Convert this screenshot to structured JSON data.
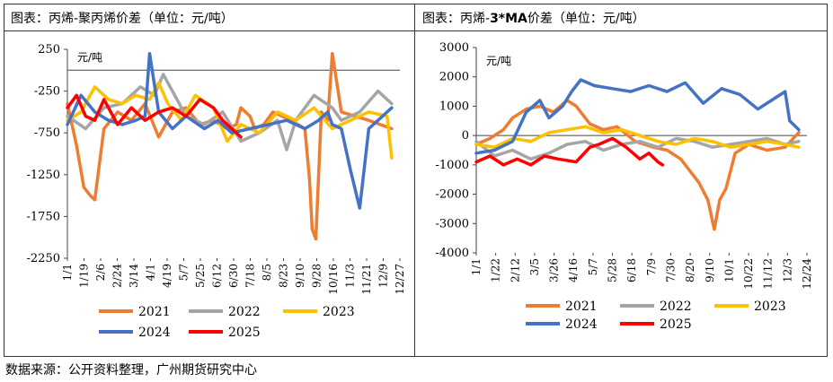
{
  "panels": [
    {
      "title": "图表：丙烯-聚丙烯价差（单位：元/吨）"
    },
    {
      "title_parts": [
        "图表：丙烯-",
        "3*MA",
        "价差（单位：元/吨）"
      ]
    }
  ],
  "source": "数据来源：公开资料整理，广州期货研究中心",
  "chart_data": [
    {
      "type": "line",
      "title": "图表：丙烯-聚丙烯价差（单位：元/吨）",
      "unit_label": "元/吨",
      "ylim": [
        -2250,
        250
      ],
      "y_ticks": [
        "250",
        "-250",
        "-750",
        "-1250",
        "-1750",
        "-2250"
      ],
      "x_ticks": [
        "1/1",
        "1/19",
        "2/6",
        "2/24",
        "3/14",
        "4/1",
        "4/19",
        "5/7",
        "5/25",
        "6/12",
        "6/30",
        "7/18",
        "8/5",
        "8/23",
        "9/10",
        "9/28",
        "10/16",
        "11/3",
        "11/21",
        "12/9",
        "12/27"
      ],
      "legend": [
        "2021",
        "2022",
        "2023",
        "2024",
        "2025"
      ],
      "series": [
        {
          "name": "2021",
          "color": "#ED7D31",
          "day": [
            0,
            10,
            18,
            25,
            30,
            40,
            55,
            70,
            85,
            100,
            115,
            130,
            145,
            160,
            175,
            185,
            190,
            200,
            205,
            215,
            225,
            245,
            260,
            265,
            268,
            272,
            278,
            285,
            290,
            300,
            330,
            355
          ],
          "values": [
            -400,
            -900,
            -1400,
            -1500,
            -1550,
            -700,
            -500,
            -600,
            -400,
            -800,
            -500,
            -450,
            -650,
            -600,
            -700,
            -650,
            -450,
            -550,
            -700,
            -650,
            -500,
            -600,
            -700,
            -1300,
            -1900,
            -2020,
            -500,
            -600,
            200,
            -500,
            -600,
            -700
          ]
        },
        {
          "name": "2022",
          "color": "#A5A5A5",
          "day": [
            0,
            20,
            40,
            60,
            80,
            95,
            105,
            115,
            130,
            150,
            170,
            190,
            210,
            230,
            240,
            250,
            270,
            290,
            300,
            320,
            340,
            355
          ],
          "values": [
            -550,
            -700,
            -450,
            -400,
            -200,
            -300,
            -50,
            -250,
            -550,
            -650,
            -500,
            -850,
            -750,
            -600,
            -950,
            -600,
            -300,
            -450,
            -600,
            -500,
            -250,
            -400
          ]
        },
        {
          "name": "2023",
          "color": "#FFC000",
          "day": [
            0,
            15,
            30,
            45,
            60,
            75,
            90,
            100,
            110,
            125,
            140,
            160,
            175,
            190,
            210,
            230,
            250,
            270,
            290,
            310,
            330,
            350,
            355
          ],
          "values": [
            -600,
            -500,
            -200,
            -350,
            -400,
            -300,
            -350,
            -150,
            -400,
            -600,
            -300,
            -450,
            -850,
            -650,
            -750,
            -500,
            -600,
            -450,
            -700,
            -600,
            -500,
            -550,
            -1050
          ]
        },
        {
          "name": "2024",
          "color": "#4472C4",
          "day": [
            0,
            15,
            30,
            45,
            60,
            75,
            85,
            90,
            100,
            115,
            130,
            150,
            165,
            180,
            200,
            220,
            240,
            260,
            275,
            285,
            290,
            300,
            310,
            320,
            330,
            345,
            355
          ],
          "values": [
            -650,
            -300,
            -500,
            -600,
            -650,
            -600,
            -550,
            200,
            -500,
            -700,
            -550,
            -700,
            -600,
            -750,
            -700,
            -650,
            -600,
            -700,
            -600,
            -500,
            -650,
            -700,
            -1200,
            -1650,
            -700,
            -550,
            -450
          ]
        },
        {
          "name": "2025",
          "color": "#FF0000",
          "day": [
            0,
            10,
            20,
            30,
            40,
            55,
            70,
            85,
            100,
            115,
            130,
            145,
            160,
            170,
            180,
            190
          ],
          "values": [
            -450,
            -300,
            -550,
            -600,
            -350,
            -650,
            -450,
            -600,
            -500,
            -450,
            -550,
            -350,
            -450,
            -600,
            -700,
            -800
          ]
        }
      ]
    },
    {
      "type": "line",
      "title": "图表：丙烯-3*MA价差（单位：元/吨）",
      "unit_label": "元/吨",
      "ylim": [
        -4000,
        3000
      ],
      "y_ticks": [
        "3000",
        "2000",
        "1000",
        "0",
        "-1000",
        "-2000",
        "-3000",
        "-4000"
      ],
      "x_ticks": [
        "1/1",
        "1/22",
        "2/12",
        "3/5",
        "3/26",
        "4/16",
        "5/7",
        "5/28",
        "6/18",
        "7/9",
        "7/30",
        "8/20",
        "9/10",
        "10/1",
        "10/22",
        "11/12",
        "12/3",
        "12/24"
      ],
      "legend": [
        "2021",
        "2022",
        "2023",
        "2024",
        "2025"
      ],
      "series": [
        {
          "name": "2021",
          "color": "#ED7D31",
          "day": [
            0,
            15,
            30,
            40,
            55,
            70,
            85,
            100,
            110,
            125,
            140,
            155,
            175,
            195,
            210,
            225,
            235,
            245,
            255,
            262,
            268,
            275,
            285,
            300,
            320,
            340,
            355
          ],
          "values": [
            -300,
            -100,
            200,
            600,
            900,
            1000,
            800,
            1200,
            1000,
            400,
            200,
            300,
            -200,
            -400,
            -500,
            -800,
            -1200,
            -1600,
            -2200,
            -3200,
            -2200,
            -1800,
            -600,
            -300,
            -500,
            -400,
            100
          ]
        },
        {
          "name": "2022",
          "color": "#A5A5A5",
          "day": [
            0,
            20,
            40,
            60,
            80,
            100,
            120,
            140,
            160,
            180,
            200,
            220,
            240,
            260,
            280,
            300,
            320,
            340,
            355
          ],
          "values": [
            -200,
            -700,
            -500,
            -800,
            -600,
            -300,
            -200,
            -500,
            -300,
            -200,
            -400,
            -100,
            -200,
            -400,
            -300,
            -200,
            -100,
            -300,
            -200
          ]
        },
        {
          "name": "2023",
          "color": "#FFC000",
          "day": [
            0,
            20,
            40,
            60,
            80,
            100,
            120,
            140,
            160,
            180,
            200,
            220,
            240,
            260,
            280,
            300,
            320,
            340,
            355
          ],
          "values": [
            -300,
            -400,
            -100,
            -200,
            100,
            200,
            300,
            100,
            200,
            0,
            -200,
            -300,
            -100,
            -200,
            -400,
            -300,
            -200,
            -300,
            -400
          ]
        },
        {
          "name": "2024",
          "color": "#4472C4",
          "day": [
            0,
            20,
            40,
            55,
            70,
            80,
            95,
            105,
            115,
            130,
            150,
            170,
            190,
            210,
            230,
            250,
            270,
            290,
            310,
            330,
            340,
            345,
            355
          ],
          "values": [
            -600,
            -500,
            -200,
            800,
            1200,
            600,
            1000,
            1500,
            1900,
            1700,
            1600,
            1500,
            1700,
            1500,
            1800,
            1100,
            1600,
            1400,
            900,
            1300,
            1500,
            500,
            200
          ]
        },
        {
          "name": "2025",
          "color": "#FF0000",
          "day": [
            0,
            15,
            30,
            45,
            60,
            75,
            90,
            110,
            125,
            135,
            150,
            165,
            180,
            190,
            200,
            205
          ],
          "values": [
            -900,
            -700,
            -1000,
            -800,
            -1000,
            -700,
            -800,
            -900,
            -400,
            -300,
            -100,
            -400,
            -800,
            -600,
            -900,
            -1000
          ]
        }
      ]
    }
  ]
}
